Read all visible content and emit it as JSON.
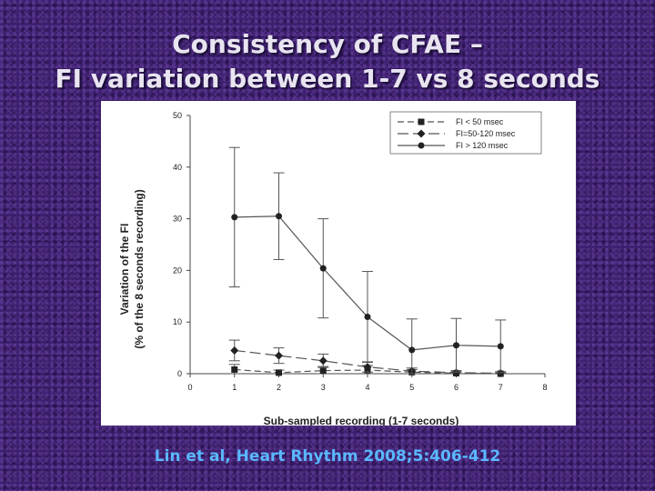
{
  "slide": {
    "title_line1": "Consistency of CFAE –",
    "title_line2": "FI variation between 1-7 vs 8 seconds",
    "citation": "Lin et al, Heart Rhythm 2008;5:406-412"
  },
  "chart_data": {
    "type": "line",
    "title": "",
    "xlabel": "Sub-sampled recording (1-7 seconds)",
    "ylabel_line1": "Variation of the FI",
    "ylabel_line2": "(% of the 8 seconds recording)",
    "xlim": [
      0,
      8
    ],
    "ylim": [
      0,
      50
    ],
    "x_ticks": [
      0,
      1,
      2,
      3,
      4,
      5,
      6,
      7,
      8
    ],
    "y_ticks": [
      0,
      10,
      20,
      30,
      40,
      50
    ],
    "legend_position": "top-right",
    "x": [
      1,
      2,
      3,
      4,
      5,
      6,
      7
    ],
    "series": [
      {
        "name": "FI < 50 msec",
        "marker": "square",
        "dash": "dashed",
        "values": [
          0.8,
          0.2,
          0.6,
          0.7,
          0.3,
          0.1,
          0.0
        ],
        "error": [
          1.0,
          0.5,
          0.8,
          0.9,
          0.5,
          0.3,
          0.2
        ]
      },
      {
        "name": "FI=50-120 msec",
        "marker": "diamond",
        "dash": "longdash",
        "values": [
          4.5,
          3.5,
          2.5,
          1.3,
          0.5,
          0.2,
          0.1
        ],
        "error": [
          2.0,
          1.5,
          1.3,
          1.0,
          0.6,
          0.4,
          0.3
        ]
      },
      {
        "name": "FI > 120 msec",
        "marker": "circle",
        "dash": "solid",
        "values": [
          30.3,
          30.5,
          20.4,
          11.0,
          4.6,
          5.5,
          5.3
        ],
        "error": [
          13.5,
          8.4,
          9.6,
          8.8,
          6.0,
          5.2,
          5.1
        ]
      }
    ]
  }
}
